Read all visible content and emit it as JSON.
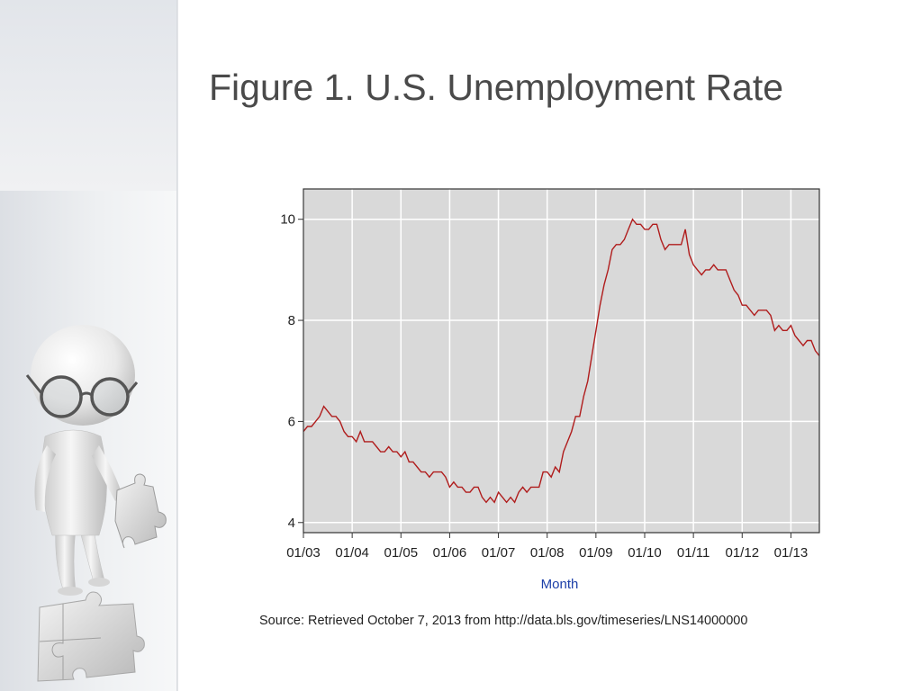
{
  "slide": {
    "title": "Figure 1. U.S. Unemployment Rate",
    "source": "Source: Retrieved October 7, 2013 from http://data.bls.gov/timeseries/LNS14000000"
  },
  "decor": {
    "figure": "3d-person-with-glasses-holding-puzzle-piece"
  },
  "chart_data": {
    "type": "line",
    "title": "",
    "xlabel": "Month",
    "ylabel": "",
    "x_ticks": [
      "01/03",
      "01/04",
      "01/05",
      "01/06",
      "01/07",
      "01/08",
      "01/09",
      "01/10",
      "01/11",
      "01/12",
      "01/13"
    ],
    "y_ticks": [
      4,
      6,
      8,
      10
    ],
    "ylim": [
      3.8,
      10.6
    ],
    "xlim": [
      "2003-01",
      "2013-08"
    ],
    "grid": true,
    "background": "#d9d9d9",
    "line_color": "#b01c1c",
    "series": [
      {
        "x": [
          "2003-01",
          "2003-02",
          "2003-03",
          "2003-04",
          "2003-05",
          "2003-06",
          "2003-07",
          "2003-08",
          "2003-09",
          "2003-10",
          "2003-11",
          "2003-12",
          "2004-01",
          "2004-02",
          "2004-03",
          "2004-04",
          "2004-05",
          "2004-06",
          "2004-07",
          "2004-08",
          "2004-09",
          "2004-10",
          "2004-11",
          "2004-12",
          "2005-01",
          "2005-02",
          "2005-03",
          "2005-04",
          "2005-05",
          "2005-06",
          "2005-07",
          "2005-08",
          "2005-09",
          "2005-10",
          "2005-11",
          "2005-12",
          "2006-01",
          "2006-02",
          "2006-03",
          "2006-04",
          "2006-05",
          "2006-06",
          "2006-07",
          "2006-08",
          "2006-09",
          "2006-10",
          "2006-11",
          "2006-12",
          "2007-01",
          "2007-02",
          "2007-03",
          "2007-04",
          "2007-05",
          "2007-06",
          "2007-07",
          "2007-08",
          "2007-09",
          "2007-10",
          "2007-11",
          "2007-12",
          "2008-01",
          "2008-02",
          "2008-03",
          "2008-04",
          "2008-05",
          "2008-06",
          "2008-07",
          "2008-08",
          "2008-09",
          "2008-10",
          "2008-11",
          "2008-12",
          "2009-01",
          "2009-02",
          "2009-03",
          "2009-04",
          "2009-05",
          "2009-06",
          "2009-07",
          "2009-08",
          "2009-09",
          "2009-10",
          "2009-11",
          "2009-12",
          "2010-01",
          "2010-02",
          "2010-03",
          "2010-04",
          "2010-05",
          "2010-06",
          "2010-07",
          "2010-08",
          "2010-09",
          "2010-10",
          "2010-11",
          "2010-12",
          "2011-01",
          "2011-02",
          "2011-03",
          "2011-04",
          "2011-05",
          "2011-06",
          "2011-07",
          "2011-08",
          "2011-09",
          "2011-10",
          "2011-11",
          "2011-12",
          "2012-01",
          "2012-02",
          "2012-03",
          "2012-04",
          "2012-05",
          "2012-06",
          "2012-07",
          "2012-08",
          "2012-09",
          "2012-10",
          "2012-11",
          "2012-12",
          "2013-01",
          "2013-02",
          "2013-03",
          "2013-04",
          "2013-05",
          "2013-06",
          "2013-07",
          "2013-08"
        ],
        "values": [
          5.8,
          5.9,
          5.9,
          6.0,
          6.1,
          6.3,
          6.2,
          6.1,
          6.1,
          6.0,
          5.8,
          5.7,
          5.7,
          5.6,
          5.8,
          5.6,
          5.6,
          5.6,
          5.5,
          5.4,
          5.4,
          5.5,
          5.4,
          5.4,
          5.3,
          5.4,
          5.2,
          5.2,
          5.1,
          5.0,
          5.0,
          4.9,
          5.0,
          5.0,
          5.0,
          4.9,
          4.7,
          4.8,
          4.7,
          4.7,
          4.6,
          4.6,
          4.7,
          4.7,
          4.5,
          4.4,
          4.5,
          4.4,
          4.6,
          4.5,
          4.4,
          4.5,
          4.4,
          4.6,
          4.7,
          4.6,
          4.7,
          4.7,
          4.7,
          5.0,
          5.0,
          4.9,
          5.1,
          5.0,
          5.4,
          5.6,
          5.8,
          6.1,
          6.1,
          6.5,
          6.8,
          7.3,
          7.8,
          8.3,
          8.7,
          9.0,
          9.4,
          9.5,
          9.5,
          9.6,
          9.8,
          10.0,
          9.9,
          9.9,
          9.8,
          9.8,
          9.9,
          9.9,
          9.6,
          9.4,
          9.5,
          9.5,
          9.5,
          9.5,
          9.8,
          9.3,
          9.1,
          9.0,
          8.9,
          9.0,
          9.0,
          9.1,
          9.0,
          9.0,
          9.0,
          8.8,
          8.6,
          8.5,
          8.3,
          8.3,
          8.2,
          8.1,
          8.2,
          8.2,
          8.2,
          8.1,
          7.8,
          7.9,
          7.8,
          7.8,
          7.9,
          7.7,
          7.6,
          7.5,
          7.6,
          7.6,
          7.4,
          7.3
        ]
      }
    ]
  }
}
